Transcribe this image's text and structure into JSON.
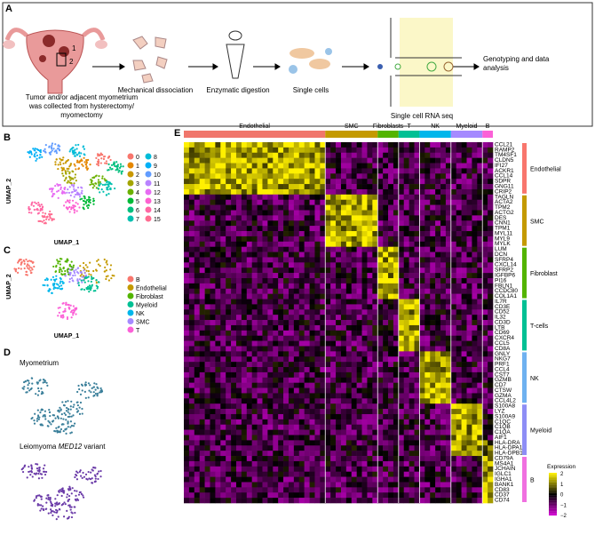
{
  "panel_a": {
    "label": "A",
    "steps": [
      "Tumor and/or adjacent myometrium was collected from hysterectomy/ myomectomy",
      "Mechanical dissociation",
      "Enzymatic digestion",
      "Single cells",
      "Single cell RNA seq",
      "Genotyping and data analysis"
    ],
    "markers": [
      "1",
      "2"
    ]
  },
  "panel_b": {
    "label": "B",
    "x_axis": "UMAP_1",
    "y_axis": "UMAP_2",
    "legend": [
      "0",
      "1",
      "2",
      "3",
      "4",
      "5",
      "6",
      "7",
      "8",
      "9",
      "10",
      "11",
      "12",
      "13",
      "14",
      "15"
    ]
  },
  "panel_c": {
    "label": "C",
    "x_axis": "UMAP_1",
    "y_axis": "UMAP_2",
    "legend": [
      "B",
      "Endothelial",
      "Fibroblast",
      "Myeloid",
      "NK",
      "SMC",
      "T"
    ]
  },
  "panel_d": {
    "label": "D",
    "top": "Myometrium",
    "bottom_prefix": "Leiomyoma ",
    "bottom_gene": "MED12",
    "bottom_suffix": " variant"
  },
  "panel_e": {
    "label": "E",
    "top_groups": [
      "Endothelial",
      "SMC",
      "Fibroblasts",
      "T",
      "NK",
      "Myeloid",
      "B"
    ],
    "row_groups": [
      {
        "name": "Endothelial",
        "genes": [
          "CCL21",
          "RAMP2",
          "TM4SF1",
          "CLDN5",
          "IFI27",
          "ACKR1",
          "CCL14",
          "SDPR",
          "GNG11",
          "CRIP2"
        ]
      },
      {
        "name": "SMC",
        "genes": [
          "TAGLN",
          "ACTA2",
          "TPM2",
          "ACTG2",
          "DES",
          "CNN1",
          "TPM1",
          "MYL11",
          "MYL9",
          "MYLK"
        ]
      },
      {
        "name": "Fibroblast",
        "genes": [
          "LUM",
          "DCN",
          "SFRP4",
          "CXCL14",
          "SFRP2",
          "IGFBP6",
          "PI16",
          "FBLN1",
          "CCDC80",
          "COL1A1"
        ]
      },
      {
        "name": "T-cells",
        "genes": [
          "IL7R",
          "CD3E",
          "CD52",
          "IL32",
          "CD3D",
          "LTB",
          "CD69",
          "CXCR4",
          "CCL5",
          "CD8A"
        ]
      },
      {
        "name": "NK",
        "genes": [
          "GNLY",
          "NKG7",
          "PRF1",
          "CCL4",
          "CST7",
          "GZMB",
          "CD7",
          "CTSW",
          "GZMA",
          "CCL4L2"
        ]
      },
      {
        "name": "Myeloid",
        "genes": [
          "S100A8",
          "LYZ",
          "S100A9",
          "C1QC",
          "C1QB",
          "C1QA",
          "AIF1",
          "HLA-DRA",
          "HLA-DPA1",
          "HLA-DPB1"
        ]
      },
      {
        "name": "B",
        "genes": [
          "CD79A",
          "MS4A1",
          "JCHAIN",
          "IGLC1",
          "IGHA1",
          "BANK1",
          "CD83",
          "CD37",
          "CD74"
        ]
      }
    ],
    "legend": {
      "title": "Expression",
      "ticks": [
        "2",
        "1",
        "0",
        "−1",
        "−2"
      ]
    }
  }
}
